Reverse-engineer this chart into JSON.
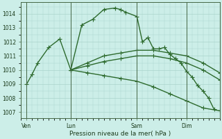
{
  "background_color": "#cceee8",
  "grid_color": "#aad4cc",
  "line_color": "#2d6a2d",
  "marker": "+",
  "marker_size": 4,
  "linewidth": 1.0,
  "xlabel": "Pression niveau de la mer( hPa )",
  "yticks": [
    1007,
    1008,
    1009,
    1010,
    1011,
    1012,
    1013,
    1014
  ],
  "ylim": [
    1006.6,
    1014.8
  ],
  "xlim": [
    0,
    36
  ],
  "xtick_labels": [
    "Ven",
    "Lun",
    "Sam",
    "Dim"
  ],
  "xtick_positions": [
    1,
    9,
    21,
    30
  ],
  "vline_positions": [
    1,
    9,
    21,
    30
  ],
  "series": [
    {
      "x": [
        1,
        2,
        3,
        5,
        7,
        9,
        11,
        13,
        15,
        17,
        18,
        19,
        21,
        22,
        23,
        24,
        25,
        26,
        27,
        28,
        29,
        30,
        31,
        32,
        33,
        34,
        35
      ],
      "y": [
        1009.0,
        1009.7,
        1010.5,
        1011.6,
        1012.2,
        1010.0,
        1013.2,
        1013.6,
        1014.3,
        1014.4,
        1014.3,
        1014.1,
        1013.8,
        1012.0,
        1012.3,
        1011.5,
        1011.5,
        1011.6,
        1011.1,
        1010.8,
        1010.5,
        1009.9,
        1009.5,
        1008.9,
        1008.5,
        1008.0,
        1007.2
      ]
    },
    {
      "x": [
        9,
        12,
        15,
        18,
        21,
        24,
        27,
        30,
        33,
        36
      ],
      "y": [
        1010.0,
        1010.5,
        1011.0,
        1011.2,
        1011.4,
        1011.4,
        1011.2,
        1011.0,
        1010.5,
        1009.8
      ]
    },
    {
      "x": [
        9,
        12,
        15,
        18,
        21,
        24,
        27,
        30,
        33,
        36
      ],
      "y": [
        1010.0,
        1010.3,
        1010.6,
        1010.8,
        1011.0,
        1011.0,
        1010.8,
        1010.5,
        1010.0,
        1009.3
      ]
    },
    {
      "x": [
        9,
        12,
        15,
        18,
        21,
        24,
        27,
        30,
        33,
        36
      ],
      "y": [
        1010.0,
        1009.8,
        1009.6,
        1009.4,
        1009.2,
        1008.8,
        1008.3,
        1007.8,
        1007.3,
        1007.1
      ]
    }
  ]
}
